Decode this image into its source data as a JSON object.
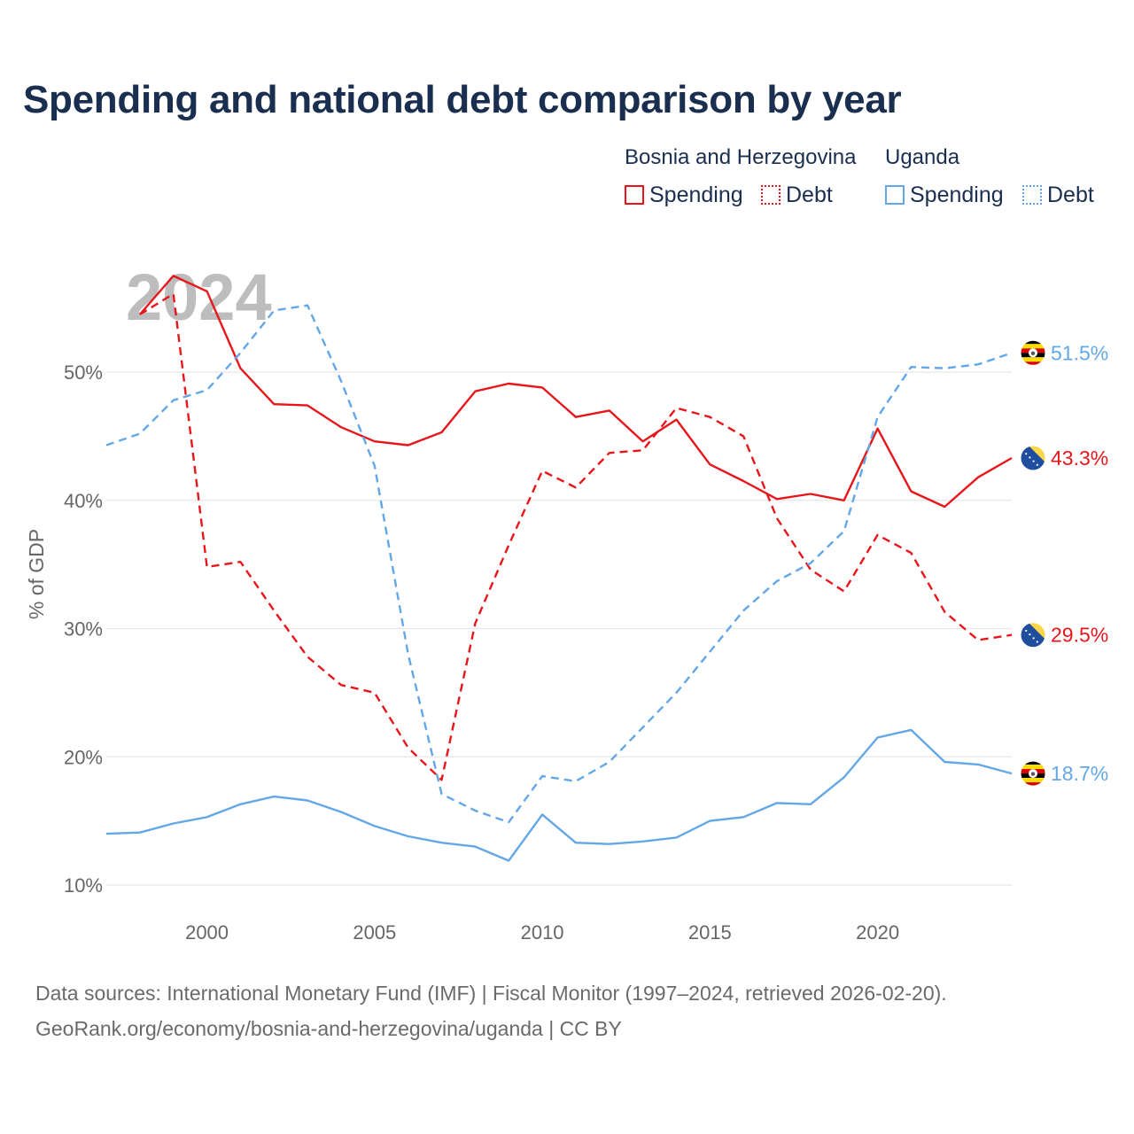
{
  "title": "Spending and national debt comparison by year",
  "year_watermark": "2024",
  "legend": {
    "groups": [
      {
        "country": "Bosnia and Herzegovina",
        "color": "#e8161b",
        "items": [
          {
            "label": "Spending",
            "style": "solid"
          },
          {
            "label": "Debt",
            "style": "dashed"
          }
        ]
      },
      {
        "country": "Uganda",
        "color": "#63a7e6",
        "items": [
          {
            "label": "Spending",
            "style": "solid"
          },
          {
            "label": "Debt",
            "style": "dashed"
          }
        ]
      }
    ]
  },
  "chart_data": {
    "type": "line",
    "title": "Spending and national debt comparison by year",
    "xlabel": "",
    "ylabel": "% of GDP",
    "xlim": [
      1997,
      2024
    ],
    "ylim": [
      10,
      57.5
    ],
    "x_ticks": [
      2000,
      2005,
      2010,
      2015,
      2020
    ],
    "y_ticks": [
      10,
      20,
      30,
      40,
      50
    ],
    "y_tick_labels": [
      "10%",
      "20%",
      "30%",
      "40%",
      "50%"
    ],
    "grid": "horizontal",
    "series": [
      {
        "name": "Bosnia and Herzegovina Spending",
        "country": "Bosnia and Herzegovina",
        "color": "#e8161b",
        "style": "solid",
        "x": [
          1998,
          1999,
          2000,
          2001,
          2002,
          2003,
          2004,
          2005,
          2006,
          2007,
          2008,
          2009,
          2010,
          2011,
          2012,
          2013,
          2014,
          2015,
          2016,
          2017,
          2018,
          2019,
          2020,
          2021,
          2022,
          2023,
          2024
        ],
        "values": [
          54.5,
          57.5,
          56.3,
          50.3,
          47.5,
          47.4,
          45.7,
          44.6,
          44.3,
          45.3,
          48.5,
          49.1,
          48.8,
          46.5,
          47.0,
          44.6,
          46.3,
          42.8,
          41.5,
          40.1,
          40.5,
          40.0,
          45.6,
          40.7,
          39.5,
          41.8,
          43.3
        ],
        "end_label": "43.3%",
        "flag": "bosnia"
      },
      {
        "name": "Bosnia and Herzegovina Debt",
        "country": "Bosnia and Herzegovina",
        "color": "#e8161b",
        "style": "dashed",
        "x": [
          1998,
          1999,
          2000,
          2001,
          2002,
          2003,
          2004,
          2005,
          2006,
          2007,
          2008,
          2009,
          2010,
          2011,
          2012,
          2013,
          2014,
          2015,
          2016,
          2017,
          2018,
          2019,
          2020,
          2021,
          2022,
          2023,
          2024
        ],
        "values": [
          54.5,
          56.1,
          34.8,
          35.2,
          31.4,
          27.8,
          25.6,
          25.0,
          20.7,
          18.2,
          30.4,
          36.5,
          42.3,
          41.0,
          43.7,
          43.9,
          47.2,
          46.5,
          45.0,
          38.6,
          34.6,
          32.9,
          37.3,
          35.9,
          31.3,
          29.1,
          29.5
        ],
        "end_label": "29.5%",
        "flag": "bosnia"
      },
      {
        "name": "Uganda Spending",
        "country": "Uganda",
        "color": "#63a7e6",
        "style": "solid",
        "x": [
          1997,
          1998,
          1999,
          2000,
          2001,
          2002,
          2003,
          2004,
          2005,
          2006,
          2007,
          2008,
          2009,
          2010,
          2011,
          2012,
          2013,
          2014,
          2015,
          2016,
          2017,
          2018,
          2019,
          2020,
          2021,
          2022,
          2023,
          2024
        ],
        "values": [
          14.0,
          14.1,
          14.8,
          15.3,
          16.3,
          16.9,
          16.6,
          15.7,
          14.6,
          13.8,
          13.3,
          13.0,
          11.9,
          15.5,
          13.3,
          13.2,
          13.4,
          13.7,
          15.0,
          15.3,
          16.4,
          16.3,
          18.4,
          21.5,
          22.1,
          19.6,
          19.4,
          18.7
        ],
        "end_label": "18.7%",
        "flag": "uganda"
      },
      {
        "name": "Uganda Debt",
        "country": "Uganda",
        "color": "#63a7e6",
        "style": "dashed",
        "x": [
          1997,
          1998,
          1999,
          2000,
          2001,
          2002,
          2003,
          2004,
          2005,
          2006,
          2007,
          2008,
          2009,
          2010,
          2011,
          2012,
          2013,
          2014,
          2015,
          2016,
          2017,
          2018,
          2019,
          2020,
          2021,
          2022,
          2023,
          2024
        ],
        "values": [
          44.3,
          45.2,
          47.8,
          48.6,
          51.5,
          54.8,
          55.2,
          49.3,
          42.7,
          28.0,
          17.1,
          15.8,
          14.9,
          18.5,
          18.1,
          19.6,
          22.3,
          25.0,
          28.2,
          31.4,
          33.7,
          35.1,
          37.6,
          46.5,
          50.4,
          50.3,
          50.6,
          51.5
        ],
        "end_label": "51.5%",
        "flag": "uganda"
      }
    ]
  },
  "footer": {
    "source": "Data sources: International Monetary Fund (IMF) | Fiscal Monitor (1997–2024, retrieved 2026-02-20).",
    "credit": "GeoRank.org/economy/bosnia-and-herzegovina/uganda | CC BY"
  }
}
